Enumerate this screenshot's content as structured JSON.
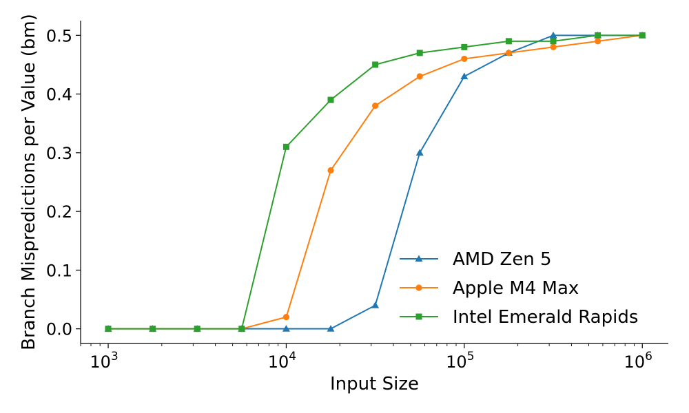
{
  "chart_data": {
    "type": "line",
    "title": "",
    "xlabel": "Input Size",
    "ylabel": "Branch Mispredictions per Value (bm)",
    "xscale": "log",
    "xlim": [
      700,
      1400000
    ],
    "ylim": [
      -0.025,
      0.525
    ],
    "x_ticks": [
      {
        "value": 1000,
        "base": "10",
        "exp": "3"
      },
      {
        "value": 10000,
        "base": "10",
        "exp": "4"
      },
      {
        "value": 100000,
        "base": "10",
        "exp": "5"
      },
      {
        "value": 1000000,
        "base": "10",
        "exp": "6"
      }
    ],
    "y_ticks": [
      {
        "value": 0.0,
        "label": "0.0"
      },
      {
        "value": 0.1,
        "label": "0.1"
      },
      {
        "value": 0.2,
        "label": "0.2"
      },
      {
        "value": 0.3,
        "label": "0.3"
      },
      {
        "value": 0.4,
        "label": "0.4"
      },
      {
        "value": 0.5,
        "label": "0.5"
      }
    ],
    "grid": false,
    "legend_position": "lower-right",
    "x": [
      1000,
      1778,
      3162,
      5623,
      10000,
      17783,
      31623,
      56234,
      100000,
      177828,
      316228,
      562341,
      1000000
    ],
    "series": [
      {
        "name": "AMD Zen 5",
        "color": "#1f77b4",
        "marker": "triangle",
        "values": [
          0.0,
          0.0,
          0.0,
          0.0,
          0.0,
          0.0,
          0.04,
          0.3,
          0.43,
          0.47,
          0.5,
          0.5,
          0.5
        ]
      },
      {
        "name": "Apple M4 Max",
        "color": "#ff7f0e",
        "marker": "circle",
        "values": [
          0.0,
          0.0,
          0.0,
          0.0,
          0.02,
          0.27,
          0.38,
          0.43,
          0.46,
          0.47,
          0.48,
          0.49,
          0.5
        ]
      },
      {
        "name": "Intel Emerald Rapids",
        "color": "#2ca02c",
        "marker": "square",
        "values": [
          0.0,
          0.0,
          0.0,
          0.0,
          0.31,
          0.39,
          0.45,
          0.47,
          0.48,
          0.49,
          0.49,
          0.5,
          0.5
        ]
      }
    ]
  }
}
